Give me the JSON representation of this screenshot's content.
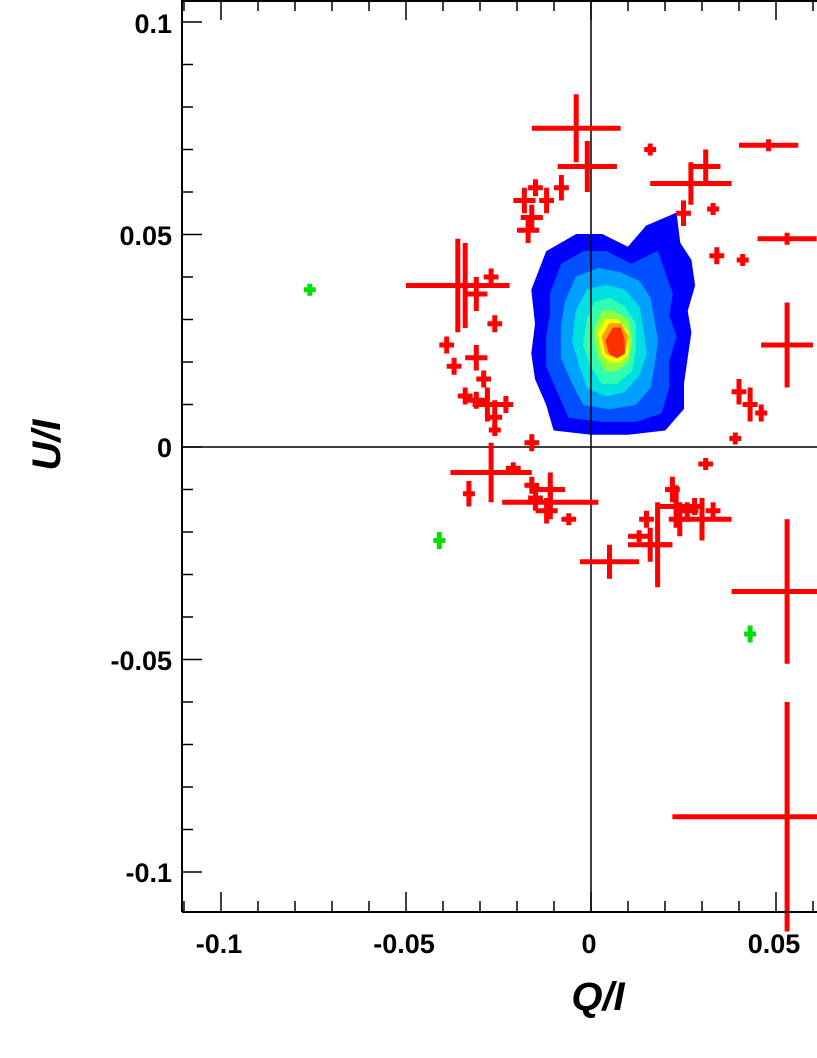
{
  "chart_data": {
    "type": "scatter",
    "title": "",
    "xlabel": "Q/I",
    "ylabel": "U/I",
    "xlim": [
      -0.11,
      0.062
    ],
    "ylim": [
      -0.11,
      0.105
    ],
    "x_ticks": [
      "-0.1",
      "-0.05",
      "0",
      "0.05"
    ],
    "y_ticks": [
      "0.1",
      "0.05",
      "0",
      "-0.05",
      "-0.1"
    ],
    "reference_lines": {
      "x": 0,
      "y": 0
    },
    "grid": false,
    "legend": "none",
    "colors": {
      "red_points": "#ff0000",
      "green_points": "#00e000",
      "contour_scale": [
        "#0000ff",
        "#0050ff",
        "#00a0ff",
        "#00e0e0",
        "#30ffb0",
        "#90ff40",
        "#ffff00",
        "#ffa000",
        "#ff3000"
      ]
    },
    "series": [
      {
        "marker": "error-cross",
        "color": "#ff0000",
        "points": [
          {
            "x": -0.004,
            "y": 0.075,
            "xerr": 0.012,
            "yerr": 0.008
          },
          {
            "x": -0.001,
            "y": 0.066,
            "xerr": 0.008,
            "yerr": 0.006
          },
          {
            "x": 0.027,
            "y": 0.062,
            "xerr": 0.011,
            "yerr": 0.005
          },
          {
            "x": 0.031,
            "y": 0.066,
            "xerr": 0.004,
            "yerr": 0.004
          },
          {
            "x": -0.015,
            "y": 0.061,
            "xerr": 0.002,
            "yerr": 0.002
          },
          {
            "x": -0.018,
            "y": 0.058,
            "xerr": 0.003,
            "yerr": 0.003
          },
          {
            "x": -0.016,
            "y": 0.054,
            "xerr": 0.003,
            "yerr": 0.003
          },
          {
            "x": -0.017,
            "y": 0.051,
            "xerr": 0.003,
            "yerr": 0.003
          },
          {
            "x": -0.012,
            "y": 0.058,
            "xerr": 0.002,
            "yerr": 0.003
          },
          {
            "x": -0.008,
            "y": 0.061,
            "xerr": 0.002,
            "yerr": 0.003
          },
          {
            "x": 0.025,
            "y": 0.055,
            "xerr": 0.002,
            "yerr": 0.003
          },
          {
            "x": 0.016,
            "y": 0.07,
            "xerr": 0.001,
            "yerr": 0.001
          },
          {
            "x": 0.033,
            "y": 0.056,
            "xerr": 0.001,
            "yerr": 0.001
          },
          {
            "x": 0.048,
            "y": 0.071,
            "xerr": 0.008,
            "yerr": 0.001
          },
          {
            "x": 0.053,
            "y": 0.049,
            "xerr": 0.008,
            "yerr": 0.001
          },
          {
            "x": 0.034,
            "y": 0.045,
            "xerr": 0.002,
            "yerr": 0.002
          },
          {
            "x": 0.041,
            "y": 0.044,
            "xerr": 0.001,
            "yerr": 0.001
          },
          {
            "x": -0.036,
            "y": 0.038,
            "xerr": 0.014,
            "yerr": 0.011
          },
          {
            "x": -0.034,
            "y": 0.038,
            "xerr": 0.005,
            "yerr": 0.01
          },
          {
            "x": -0.031,
            "y": 0.036,
            "xerr": 0.003,
            "yerr": 0.004
          },
          {
            "x": -0.027,
            "y": 0.04,
            "xerr": 0.002,
            "yerr": 0.002
          },
          {
            "x": -0.026,
            "y": 0.029,
            "xerr": 0.002,
            "yerr": 0.002
          },
          {
            "x": -0.039,
            "y": 0.024,
            "xerr": 0.002,
            "yerr": 0.002
          },
          {
            "x": -0.031,
            "y": 0.021,
            "xerr": 0.003,
            "yerr": 0.003
          },
          {
            "x": -0.037,
            "y": 0.019,
            "xerr": 0.002,
            "yerr": 0.002
          },
          {
            "x": -0.029,
            "y": 0.016,
            "xerr": 0.002,
            "yerr": 0.002
          },
          {
            "x": -0.034,
            "y": 0.012,
            "xerr": 0.002,
            "yerr": 0.002
          },
          {
            "x": -0.031,
            "y": 0.011,
            "xerr": 0.003,
            "yerr": 0.002
          },
          {
            "x": -0.028,
            "y": 0.01,
            "xerr": 0.004,
            "yerr": 0.004
          },
          {
            "x": -0.026,
            "y": 0.007,
            "xerr": 0.002,
            "yerr": 0.004
          },
          {
            "x": -0.023,
            "y": 0.01,
            "xerr": 0.002,
            "yerr": 0.002
          },
          {
            "x": -0.026,
            "y": 0.004,
            "xerr": 0.001,
            "yerr": 0.001
          },
          {
            "x": -0.016,
            "y": 0.001,
            "xerr": 0.002,
            "yerr": 0.002
          },
          {
            "x": -0.027,
            "y": -0.006,
            "xerr": 0.011,
            "yerr": 0.007
          },
          {
            "x": -0.033,
            "y": -0.011,
            "xerr": 0.001,
            "yerr": 0.003
          },
          {
            "x": -0.021,
            "y": -0.005,
            "xerr": 0.002,
            "yerr": 0.001
          },
          {
            "x": -0.016,
            "y": -0.009,
            "xerr": 0.002,
            "yerr": 0.002
          },
          {
            "x": -0.015,
            "y": -0.012,
            "xerr": 0.002,
            "yerr": 0.003
          },
          {
            "x": -0.011,
            "y": -0.01,
            "xerr": 0.004,
            "yerr": 0.004
          },
          {
            "x": -0.011,
            "y": -0.013,
            "xerr": 0.013,
            "yerr": 0.004
          },
          {
            "x": -0.012,
            "y": -0.015,
            "xerr": 0.003,
            "yerr": 0.003
          },
          {
            "x": -0.006,
            "y": -0.017,
            "xerr": 0.002,
            "yerr": 0.001
          },
          {
            "x": 0.005,
            "y": -0.027,
            "xerr": 0.008,
            "yerr": 0.004
          },
          {
            "x": 0.013,
            "y": -0.021,
            "xerr": 0.003,
            "yerr": 0.001
          },
          {
            "x": 0.015,
            "y": -0.017,
            "xerr": 0.002,
            "yerr": 0.002
          },
          {
            "x": 0.016,
            "y": -0.023,
            "xerr": 0.006,
            "yerr": 0.004
          },
          {
            "x": 0.018,
            "y": -0.023,
            "xerr": 0.004,
            "yerr": 0.01
          },
          {
            "x": 0.022,
            "y": -0.01,
            "xerr": 0.002,
            "yerr": 0.003
          },
          {
            "x": 0.023,
            "y": -0.014,
            "xerr": 0.005,
            "yerr": 0.005
          },
          {
            "x": 0.024,
            "y": -0.017,
            "xerr": 0.003,
            "yerr": 0.004
          },
          {
            "x": 0.026,
            "y": -0.015,
            "xerr": 0.003,
            "yerr": 0.002
          },
          {
            "x": 0.028,
            "y": -0.014,
            "xerr": 0.002,
            "yerr": 0.002
          },
          {
            "x": 0.03,
            "y": -0.017,
            "xerr": 0.008,
            "yerr": 0.005
          },
          {
            "x": 0.031,
            "y": -0.004,
            "xerr": 0.002,
            "yerr": 0.001
          },
          {
            "x": 0.033,
            "y": -0.015,
            "xerr": 0.002,
            "yerr": 0.002
          },
          {
            "x": 0.04,
            "y": 0.013,
            "xerr": 0.002,
            "yerr": 0.003
          },
          {
            "x": 0.043,
            "y": 0.01,
            "xerr": 0.002,
            "yerr": 0.004
          },
          {
            "x": 0.046,
            "y": 0.008,
            "xerr": 0.001,
            "yerr": 0.002
          },
          {
            "x": 0.039,
            "y": 0.002,
            "xerr": 0.001,
            "yerr": 0.001
          },
          {
            "x": 0.053,
            "y": 0.024,
            "xerr": 0.007,
            "yerr": 0.01
          },
          {
            "x": 0.053,
            "y": -0.034,
            "xerr": 0.015,
            "yerr": 0.017
          },
          {
            "x": 0.053,
            "y": -0.087,
            "xerr": 0.031,
            "yerr": 0.027
          }
        ]
      },
      {
        "marker": "error-cross",
        "color": "#00e000",
        "points": [
          {
            "x": -0.076,
            "y": 0.037,
            "xerr": 0.001,
            "yerr": 0.001
          },
          {
            "x": -0.041,
            "y": -0.022,
            "xerr": 0.001,
            "yerr": 0.002
          },
          {
            "x": 0.043,
            "y": -0.044,
            "xerr": 0.001,
            "yerr": 0.002
          }
        ]
      }
    ],
    "contour": {
      "type": "density",
      "levels": [
        {
          "color": "#0000ff",
          "points": [
            [
              -0.016,
              0.037
            ],
            [
              -0.012,
              0.046
            ],
            [
              -0.004,
              0.05
            ],
            [
              0.003,
              0.05
            ],
            [
              0.01,
              0.047
            ],
            [
              0.015,
              0.052
            ],
            [
              0.023,
              0.055
            ],
            [
              0.024,
              0.048
            ],
            [
              0.027,
              0.044
            ],
            [
              0.028,
              0.038
            ],
            [
              0.026,
              0.032
            ],
            [
              0.027,
              0.027
            ],
            [
              0.026,
              0.021
            ],
            [
              0.025,
              0.015
            ],
            [
              0.025,
              0.009
            ],
            [
              0.02,
              0.004
            ],
            [
              0.01,
              0.003
            ],
            [
              0.0,
              0.003
            ],
            [
              -0.01,
              0.004
            ],
            [
              -0.012,
              0.01
            ],
            [
              -0.015,
              0.016
            ],
            [
              -0.016,
              0.022
            ],
            [
              -0.015,
              0.029
            ]
          ]
        },
        {
          "color": "#0050ff",
          "points": [
            [
              -0.011,
              0.036
            ],
            [
              -0.008,
              0.043
            ],
            [
              -0.002,
              0.046
            ],
            [
              0.004,
              0.046
            ],
            [
              0.011,
              0.043
            ],
            [
              0.018,
              0.046
            ],
            [
              0.02,
              0.041
            ],
            [
              0.022,
              0.036
            ],
            [
              0.021,
              0.031
            ],
            [
              0.023,
              0.026
            ],
            [
              0.021,
              0.02
            ],
            [
              0.021,
              0.014
            ],
            [
              0.019,
              0.008
            ],
            [
              0.012,
              0.006
            ],
            [
              0.003,
              0.006
            ],
            [
              -0.006,
              0.007
            ],
            [
              -0.009,
              0.013
            ],
            [
              -0.012,
              0.019
            ],
            [
              -0.012,
              0.026
            ],
            [
              -0.011,
              0.031
            ]
          ]
        },
        {
          "color": "#00a0ff",
          "points": [
            [
              -0.007,
              0.034
            ],
            [
              -0.004,
              0.04
            ],
            [
              0.002,
              0.042
            ],
            [
              0.008,
              0.041
            ],
            [
              0.013,
              0.039
            ],
            [
              0.016,
              0.035
            ],
            [
              0.017,
              0.03
            ],
            [
              0.018,
              0.025
            ],
            [
              0.017,
              0.019
            ],
            [
              0.016,
              0.014
            ],
            [
              0.012,
              0.01
            ],
            [
              0.005,
              0.009
            ],
            [
              -0.002,
              0.01
            ],
            [
              -0.005,
              0.015
            ],
            [
              -0.008,
              0.021
            ],
            [
              -0.008,
              0.028
            ]
          ]
        },
        {
          "color": "#00e0e0",
          "points": [
            [
              -0.004,
              0.032
            ],
            [
              -0.001,
              0.037
            ],
            [
              0.004,
              0.038
            ],
            [
              0.009,
              0.037
            ],
            [
              0.013,
              0.033
            ],
            [
              0.014,
              0.028
            ],
            [
              0.015,
              0.022
            ],
            [
              0.013,
              0.017
            ],
            [
              0.009,
              0.013
            ],
            [
              0.004,
              0.012
            ],
            [
              -0.001,
              0.014
            ],
            [
              -0.003,
              0.019
            ],
            [
              -0.005,
              0.025
            ]
          ]
        },
        {
          "color": "#30ffb0",
          "points": [
            [
              -0.001,
              0.03
            ],
            [
              0.001,
              0.034
            ],
            [
              0.005,
              0.035
            ],
            [
              0.009,
              0.033
            ],
            [
              0.012,
              0.029
            ],
            [
              0.012,
              0.023
            ],
            [
              0.011,
              0.018
            ],
            [
              0.007,
              0.015
            ],
            [
              0.003,
              0.015
            ],
            [
              0.0,
              0.019
            ],
            [
              -0.002,
              0.024
            ]
          ]
        },
        {
          "color": "#90ff40",
          "points": [
            [
              0.001,
              0.028
            ],
            [
              0.003,
              0.032
            ],
            [
              0.006,
              0.032
            ],
            [
              0.01,
              0.03
            ],
            [
              0.011,
              0.025
            ],
            [
              0.01,
              0.02
            ],
            [
              0.007,
              0.018
            ],
            [
              0.004,
              0.018
            ],
            [
              0.002,
              0.021
            ],
            [
              0.001,
              0.025
            ]
          ]
        },
        {
          "color": "#ffff00",
          "points": [
            [
              0.002,
              0.027
            ],
            [
              0.004,
              0.03
            ],
            [
              0.007,
              0.03
            ],
            [
              0.01,
              0.027
            ],
            [
              0.01,
              0.022
            ],
            [
              0.008,
              0.02
            ],
            [
              0.005,
              0.02
            ],
            [
              0.003,
              0.022
            ]
          ]
        },
        {
          "color": "#ffa000",
          "points": [
            [
              0.003,
              0.026
            ],
            [
              0.005,
              0.029
            ],
            [
              0.008,
              0.029
            ],
            [
              0.01,
              0.026
            ],
            [
              0.009,
              0.022
            ],
            [
              0.007,
              0.021
            ],
            [
              0.004,
              0.022
            ]
          ]
        },
        {
          "color": "#ff3000",
          "points": [
            [
              0.004,
              0.025
            ],
            [
              0.006,
              0.028
            ],
            [
              0.008,
              0.028
            ],
            [
              0.009,
              0.025
            ],
            [
              0.009,
              0.022
            ],
            [
              0.007,
              0.021
            ],
            [
              0.005,
              0.022
            ]
          ]
        }
      ]
    }
  }
}
